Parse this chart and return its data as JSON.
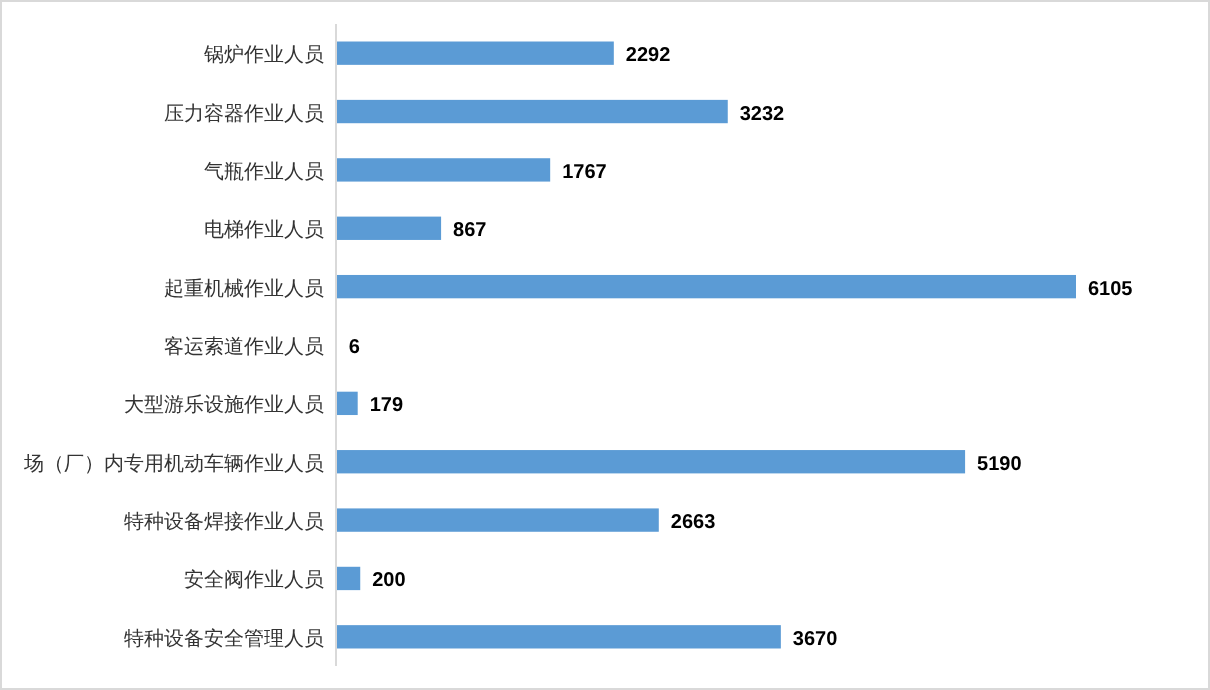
{
  "chart_data": {
    "type": "bar",
    "orientation": "horizontal",
    "categories": [
      "锅炉作业人员",
      "压力容器作业人员",
      "气瓶作业人员",
      "电梯作业人员",
      "起重机械作业人员",
      "客运索道作业人员",
      "大型游乐设施作业人员",
      "场（厂）内专用机动车辆作业人员",
      "特种设备焊接作业人员",
      "安全阀作业人员",
      "特种设备安全管理人员"
    ],
    "values": [
      2292,
      3232,
      1767,
      867,
      6105,
      6,
      179,
      5190,
      2663,
      200,
      3670
    ],
    "color": "#5b9bd5",
    "data_labels": true
  }
}
